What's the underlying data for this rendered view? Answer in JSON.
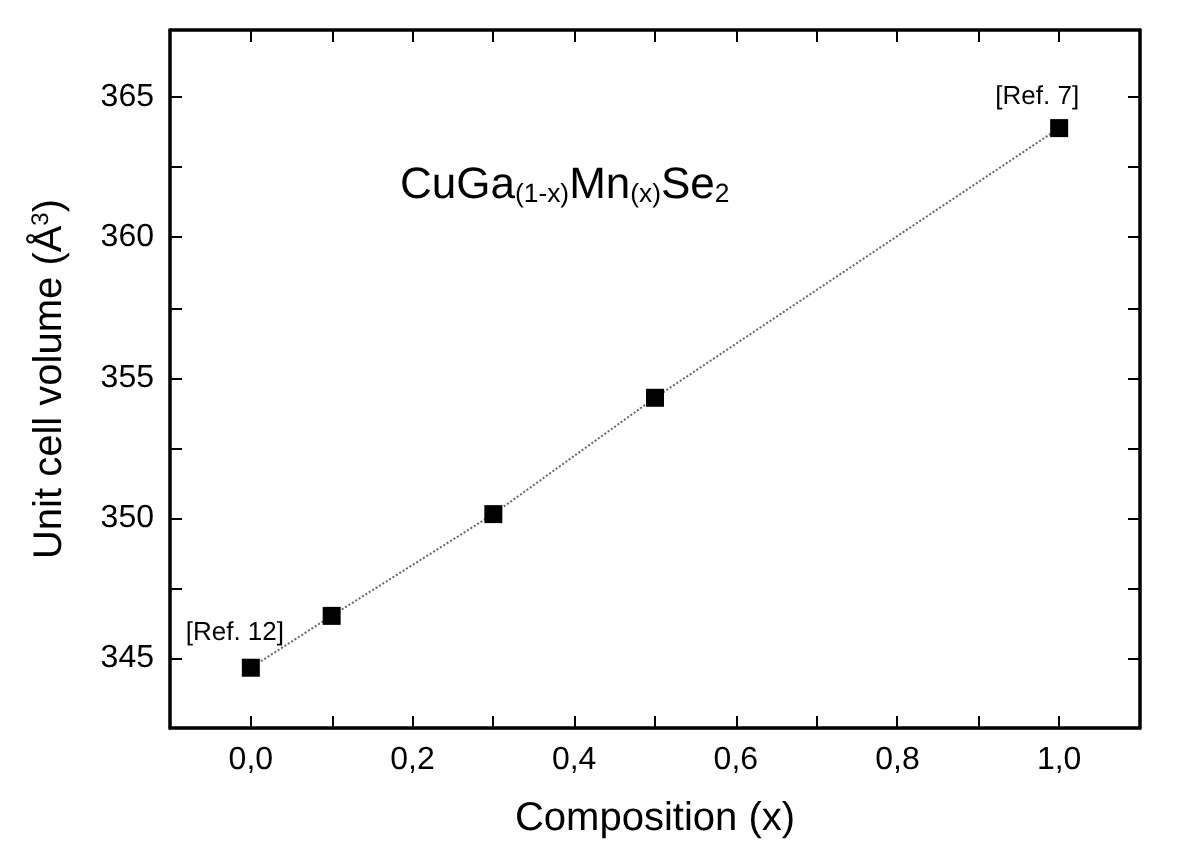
{
  "chart_data": {
    "type": "line",
    "title": "CuGa$_{(1-x)}$Mn$_{(x)}$Se$_{2}$",
    "xlabel": "Composition (x)",
    "ylabel": "Unit cell volume (Å$^{3}$)",
    "x": [
      0,
      0.1,
      0.3,
      0.5,
      1.0
    ],
    "series": [
      {
        "color": "#000000",
        "values": [
          344.65,
          346.5,
          350.13,
          354.28,
          363.9
        ]
      }
    ],
    "marker": "square",
    "line_style": "dotted",
    "xlim": [
      -0.1,
      1.1
    ],
    "xticks": [
      {
        "value": 0,
        "label": "0,0"
      },
      {
        "value": 0.1,
        "label": null
      },
      {
        "value": 0.2,
        "label": "0,2"
      },
      {
        "value": 0.3,
        "label": null
      },
      {
        "value": 0.4,
        "label": "0,4"
      },
      {
        "value": 0.5,
        "label": null
      },
      {
        "value": 0.6,
        "label": "0,6"
      },
      {
        "value": 0.7,
        "label": null
      },
      {
        "value": 0.8,
        "label": "0,8"
      },
      {
        "value": 0.9,
        "label": null
      },
      {
        "value": 1.0,
        "label": "1,0"
      }
    ],
    "ylim": [
      342.5,
      367.4
    ],
    "yticks": [
      345,
      {
        "value": 347.5,
        "label": null
      },
      350,
      {
        "value": 352.5,
        "label": null
      },
      355,
      {
        "value": 357.5,
        "label": null
      },
      360,
      {
        "value": 362.5,
        "label": null
      },
      365
    ],
    "annotations": [
      {
        "text": "[Ref. 12]",
        "x": 0,
        "y": 344.65
      },
      {
        "text": "[Ref. 7]",
        "x": 1.0,
        "y": 363.9
      }
    ],
    "grid": false
  }
}
